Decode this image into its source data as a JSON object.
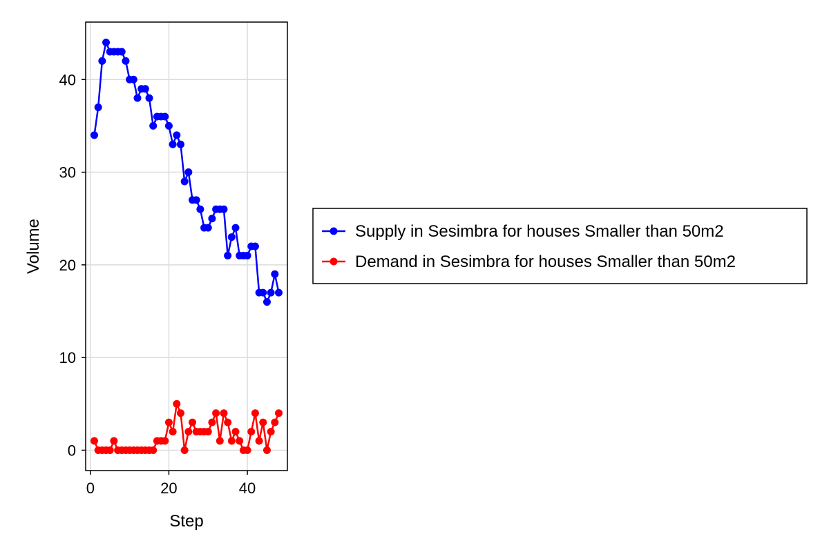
{
  "chart_data": {
    "type": "line",
    "xlabel": "Step",
    "ylabel": "Volume",
    "xlim": [
      -1.2,
      50.2
    ],
    "ylim": [
      -2.2,
      46.2
    ],
    "xticks": [
      0,
      20,
      40
    ],
    "yticks": [
      0,
      10,
      20,
      30,
      40
    ],
    "grid": true,
    "legend_position": "right",
    "x": [
      1,
      2,
      3,
      4,
      5,
      6,
      7,
      8,
      9,
      10,
      11,
      12,
      13,
      14,
      15,
      16,
      17,
      18,
      19,
      20,
      21,
      22,
      23,
      24,
      25,
      26,
      27,
      28,
      29,
      30,
      31,
      32,
      33,
      34,
      35,
      36,
      37,
      38,
      39,
      40,
      41,
      42,
      43,
      44,
      45,
      46,
      47,
      48
    ],
    "series": [
      {
        "name": "Supply in Sesimbra for houses Smaller than 50m2",
        "color": "#0000ff",
        "values": [
          34,
          37,
          42,
          44,
          43,
          43,
          43,
          43,
          42,
          40,
          40,
          38,
          39,
          39,
          38,
          35,
          36,
          36,
          36,
          35,
          33,
          34,
          33,
          29,
          30,
          27,
          27,
          26,
          24,
          24,
          25,
          26,
          26,
          26,
          21,
          23,
          24,
          21,
          21,
          21,
          22,
          22,
          17,
          17,
          16,
          17,
          19,
          17
        ]
      },
      {
        "name": "Demand in Sesimbra for houses Smaller than 50m2",
        "color": "#ff0000",
        "values": [
          1,
          0,
          0,
          0,
          0,
          1,
          0,
          0,
          0,
          0,
          0,
          0,
          0,
          0,
          0,
          0,
          1,
          1,
          1,
          3,
          2,
          5,
          4,
          0,
          2,
          3,
          2,
          2,
          2,
          2,
          3,
          4,
          1,
          4,
          3,
          1,
          2,
          1,
          0,
          0,
          2,
          4,
          1,
          3,
          0,
          2,
          3,
          4
        ]
      }
    ]
  }
}
